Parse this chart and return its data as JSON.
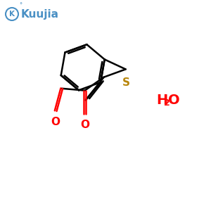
{
  "bg_color": "#ffffff",
  "bond_color": "#000000",
  "S_color": "#b8860b",
  "O_color": "#ff0000",
  "H2O_color": "#ff0000",
  "logo_color": "#4a90c4",
  "figsize": [
    3.0,
    3.0
  ],
  "dpi": 100,
  "bond_lw": 1.8,
  "S_label": "S",
  "H2O_label": "H2O",
  "logo_text": "Kuujia"
}
